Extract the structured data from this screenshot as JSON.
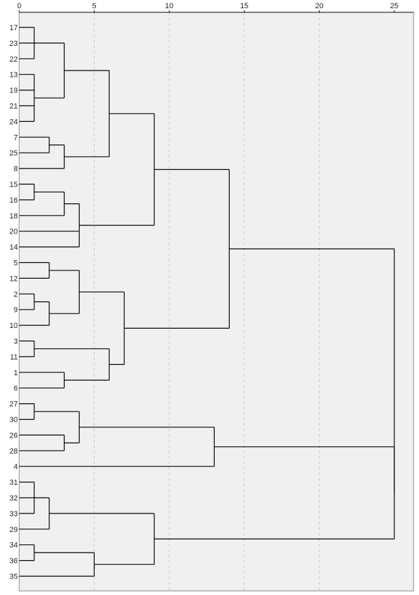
{
  "chart_data": {
    "type": "dendrogram",
    "orientation": "horizontal",
    "xlim": [
      0,
      25
    ],
    "x_ticks": [
      0,
      5,
      10,
      15,
      20,
      25
    ],
    "grid": true,
    "leaf_order": [
      "17",
      "23",
      "22",
      "13",
      "19",
      "21",
      "24",
      "7",
      "25",
      "8",
      "15",
      "16",
      "18",
      "20",
      "14",
      "5",
      "12",
      "2",
      "9",
      "10",
      "3",
      "11",
      "1",
      "6",
      "27",
      "30",
      "26",
      "28",
      "4",
      "31",
      "32",
      "33",
      "29",
      "34",
      "36",
      "35"
    ],
    "merges": [
      {
        "children": [
          "17",
          "23",
          "22"
        ],
        "height": 1
      },
      {
        "children": [
          "13",
          "19",
          "21",
          "24"
        ],
        "height": 1
      },
      {
        "children": [
          "7",
          "25"
        ],
        "height": 2
      },
      {
        "children": [
          "15",
          "16"
        ],
        "height": 1
      },
      {
        "children": [
          "2",
          "9"
        ],
        "height": 1
      },
      {
        "children": [
          "3",
          "11"
        ],
        "height": 1
      },
      {
        "children": [
          "27",
          "30"
        ],
        "height": 1
      },
      {
        "children": [
          "31",
          "32",
          "33"
        ],
        "height": 1
      },
      {
        "children": [
          "34",
          "36"
        ],
        "height": 1
      },
      {
        "children": [
          "17-23-22",
          "13-19-21-24"
        ],
        "height": 3
      },
      {
        "children": [
          "7-25",
          "8"
        ],
        "height": 3
      },
      {
        "children": [
          "15-16",
          "18"
        ],
        "height": 3
      },
      {
        "children": [
          "5",
          "12"
        ],
        "height": 2
      },
      {
        "children": [
          "2-9",
          "10"
        ],
        "height": 2
      },
      {
        "children": [
          "1",
          "6"
        ],
        "height": 3
      },
      {
        "children": [
          "26",
          "28"
        ],
        "height": 3
      },
      {
        "children": [
          "31-32-33",
          "29"
        ],
        "height": 2
      },
      {
        "children": [
          "15-16-18",
          "20",
          "14"
        ],
        "height": 4
      },
      {
        "children": [
          "5-12",
          "2-9-10"
        ],
        "height": 4
      },
      {
        "children": [
          "27-30",
          "26-28"
        ],
        "height": 4
      },
      {
        "children": [
          "34-36",
          "35"
        ],
        "height": 5
      },
      {
        "children": [
          "17-23-22-13-19-21-24",
          "7-25-8"
        ],
        "height": 6
      },
      {
        "children": [
          "3-11",
          "1-6"
        ],
        "height": 6
      },
      {
        "children": [
          "5-12-2-9-10",
          "3-11-1-6"
        ],
        "height": 7
      },
      {
        "children": [
          "17-...-8",
          "15-16-18-20-14"
        ],
        "height": 9
      },
      {
        "children": [
          "31-32-33-29",
          "34-36-35"
        ],
        "height": 9
      },
      {
        "children": [
          "27-30-26-28",
          "4"
        ],
        "height": 13
      },
      {
        "children": [
          "17-...-14",
          "5-...-6"
        ],
        "height": 14
      },
      {
        "children": [
          "27-...-4",
          "31-...-35"
        ],
        "height": 25
      },
      {
        "children": [
          "17-...-6",
          "27-...-35"
        ],
        "height": 25
      }
    ],
    "line_color": "#000000",
    "background_color": "#f0f0f0",
    "grid_color": "#c8c8c8"
  }
}
